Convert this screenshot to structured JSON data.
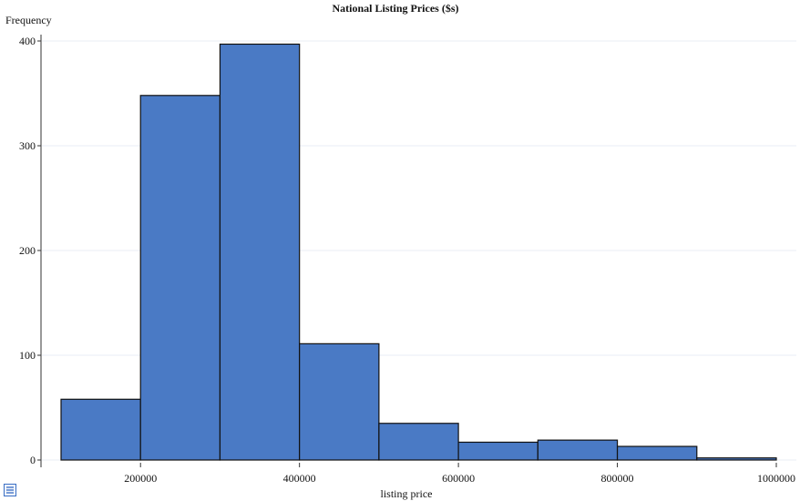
{
  "chart_data": {
    "type": "bar",
    "title": "National Listing Prices ($s)",
    "xlabel": "listing price",
    "ylabel": "Frequency",
    "bins": [
      {
        "x0": 100000,
        "x1": 200000,
        "value": 58
      },
      {
        "x0": 200000,
        "x1": 300000,
        "value": 348
      },
      {
        "x0": 300000,
        "x1": 400000,
        "value": 397
      },
      {
        "x0": 400000,
        "x1": 500000,
        "value": 111
      },
      {
        "x0": 500000,
        "x1": 600000,
        "value": 35
      },
      {
        "x0": 600000,
        "x1": 700000,
        "value": 17
      },
      {
        "x0": 700000,
        "x1": 800000,
        "value": 19
      },
      {
        "x0": 800000,
        "x1": 900000,
        "value": 13
      },
      {
        "x0": 900000,
        "x1": 1000000,
        "value": 2
      }
    ],
    "xlim": [
      100000,
      1000000
    ],
    "ylim": [
      0,
      400
    ],
    "xticks": [
      200000,
      400000,
      600000,
      800000,
      1000000
    ],
    "yticks": [
      0,
      100,
      200,
      300,
      400
    ],
    "bar_color": "#4a7ac5",
    "grid": true
  },
  "footer": {
    "icon": "list-icon"
  }
}
